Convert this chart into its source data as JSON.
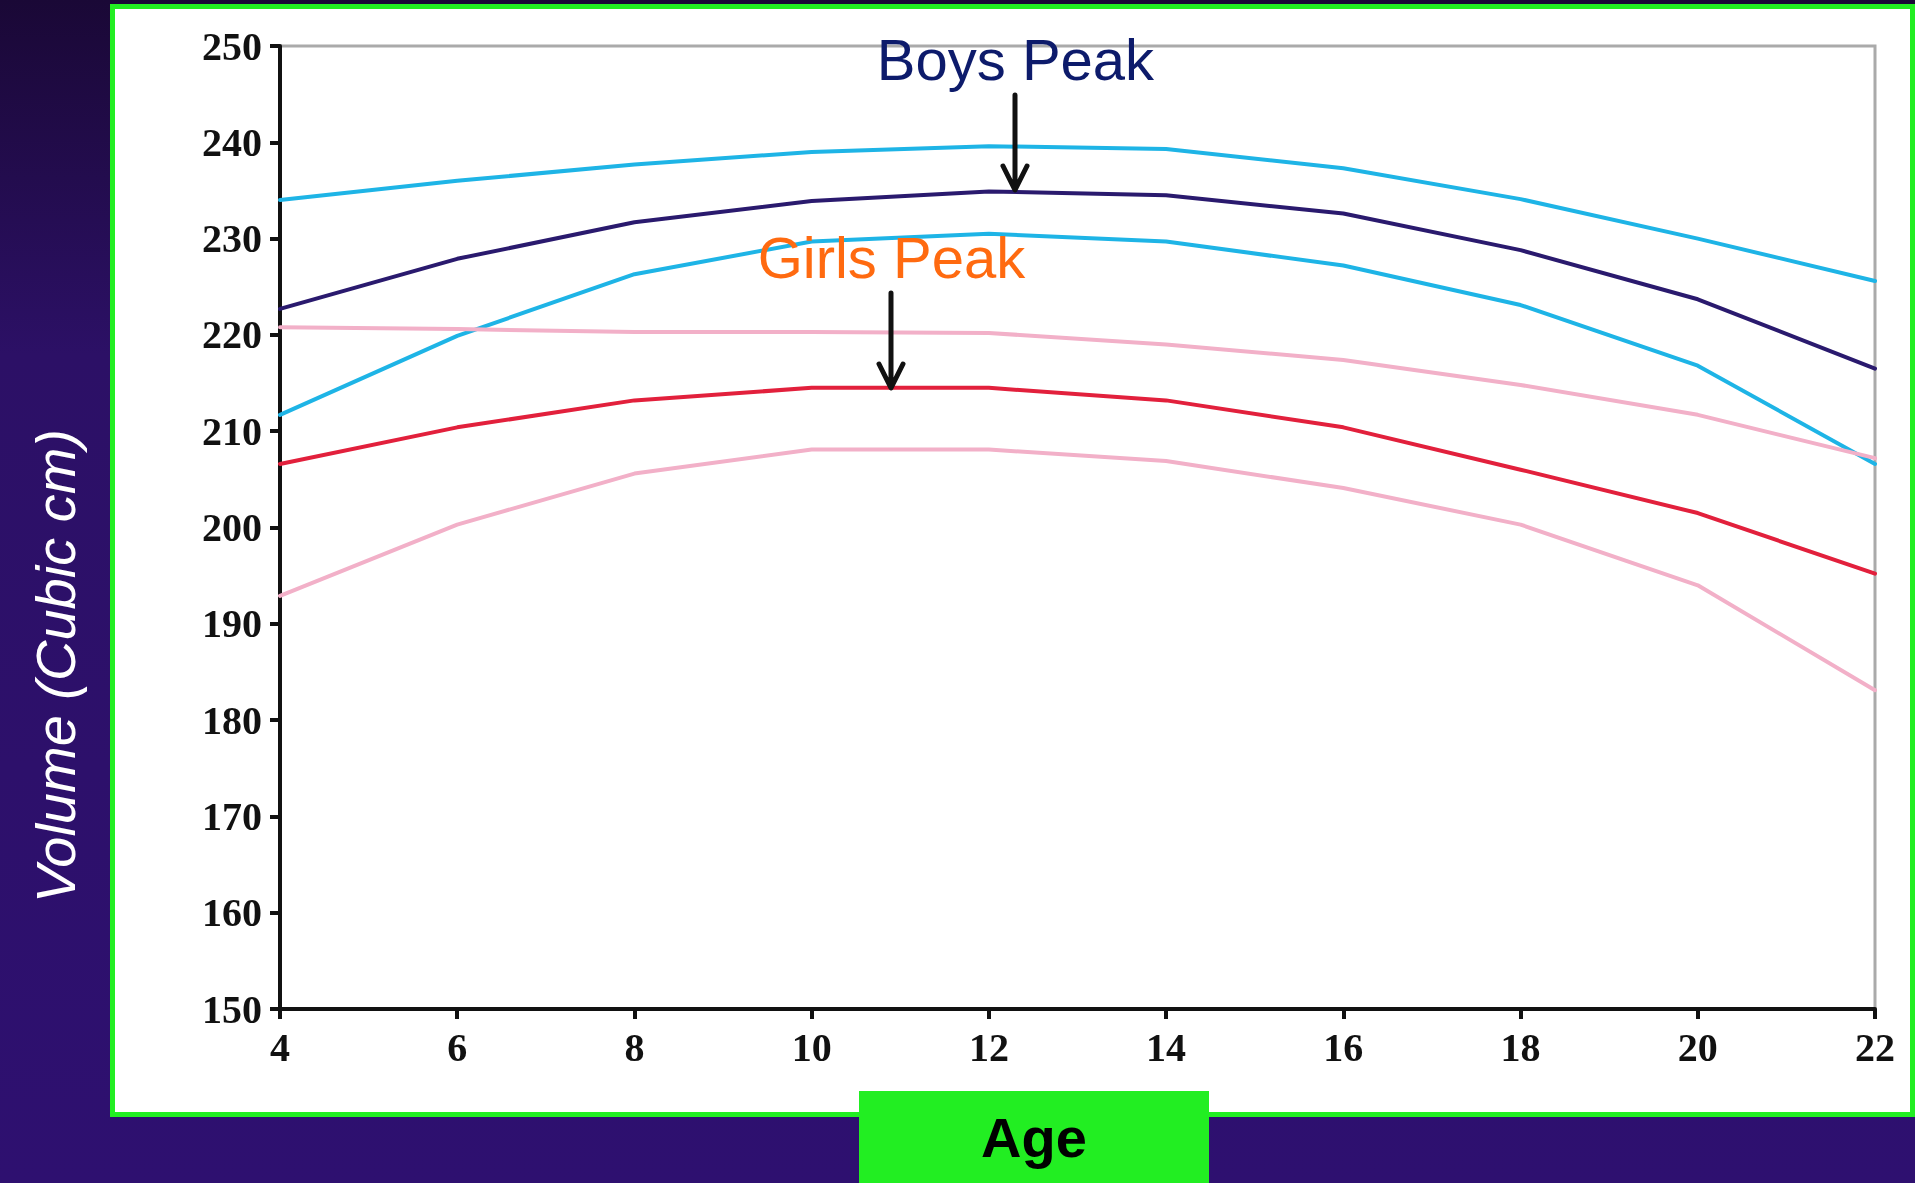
{
  "chart_data": {
    "type": "line",
    "xlabel": "Age",
    "ylabel": "Volume (Cubic cm)",
    "x": [
      4,
      6,
      8,
      10,
      12,
      14,
      16,
      18,
      20,
      22
    ],
    "series": [
      {
        "color": "#1eb4e6",
        "values": [
          234,
          236,
          237.7,
          239,
          239.6,
          239.3,
          237.3,
          234.1,
          230,
          225.6
        ]
      },
      {
        "color": "#2a1a6e",
        "values": [
          222.7,
          227.9,
          231.7,
          233.9,
          234.9,
          234.5,
          232.6,
          228.8,
          223.7,
          216.5
        ]
      },
      {
        "color": "#1eb4e6",
        "values": [
          211.7,
          219.9,
          226.3,
          229.7,
          230.5,
          229.7,
          227.2,
          223.1,
          216.8,
          206.6
        ]
      },
      {
        "color": "#f2b0c8",
        "values": [
          220.8,
          220.6,
          220.3,
          220.3,
          220.2,
          219,
          217.4,
          214.8,
          211.7,
          207.2
        ]
      },
      {
        "color": "#e2203c",
        "values": [
          206.6,
          210.4,
          213.2,
          214.5,
          214.5,
          213.2,
          210.4,
          206,
          201.5,
          195.2
        ]
      },
      {
        "color": "#f2b0c8",
        "values": [
          192.9,
          200.3,
          205.6,
          208.1,
          208.1,
          206.9,
          204.1,
          200.3,
          194,
          183.1
        ]
      }
    ],
    "annotations": [
      {
        "text": "Boys Peak",
        "x": 12.3,
        "y": 235
      },
      {
        "text": "Girls Peak",
        "x": 10.9,
        "y": 214.5
      }
    ],
    "xlim": [
      4,
      22
    ],
    "xticks": [
      4,
      6,
      8,
      10,
      12,
      14,
      16,
      18,
      20,
      22
    ],
    "ylim": [
      150,
      250
    ],
    "yticks": [
      150,
      160,
      170,
      180,
      190,
      200,
      210,
      220,
      230,
      240,
      250
    ],
    "grid": false,
    "marker": "none",
    "line_style": "solid"
  }
}
